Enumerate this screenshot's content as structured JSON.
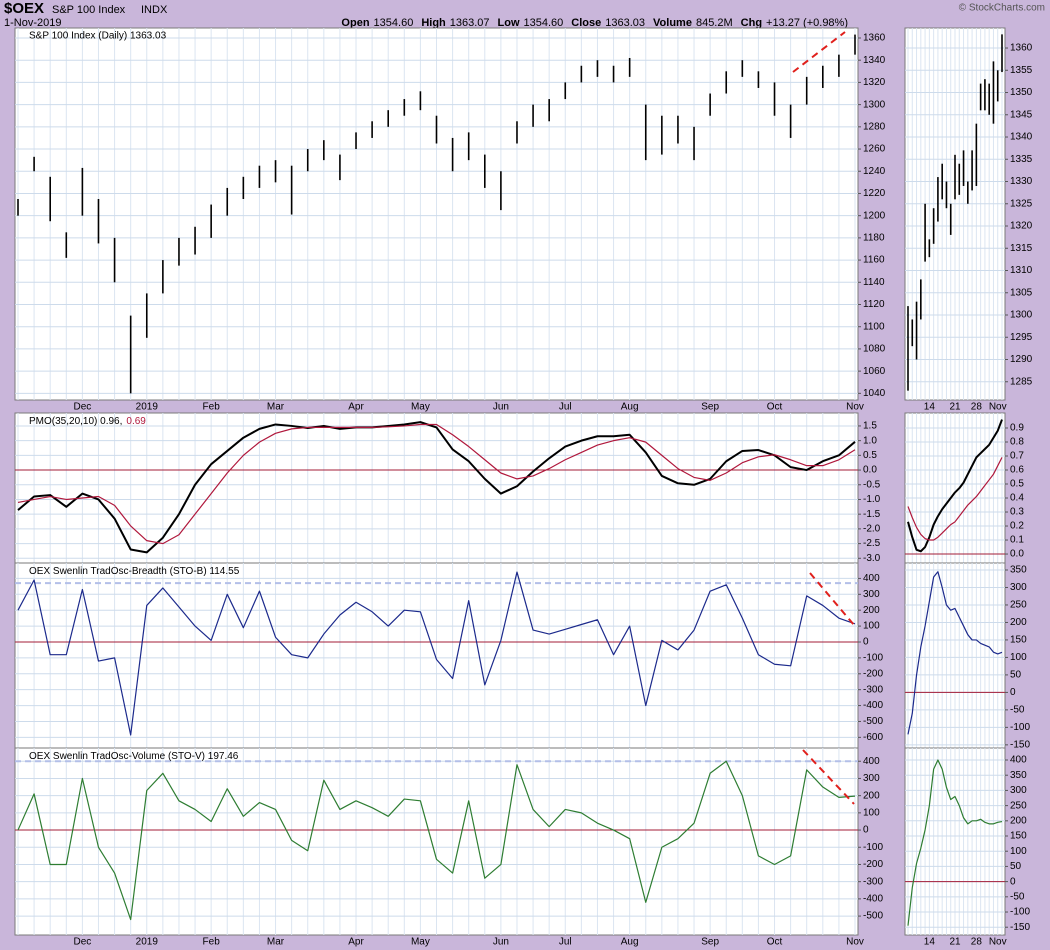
{
  "header": {
    "symbol": "$OEX",
    "name": "S&P 100 Index",
    "exchange": "INDX",
    "date": "1-Nov-2019",
    "credit": "© StockCharts.com",
    "quote": [
      {
        "label": "Open",
        "value": "1354.60"
      },
      {
        "label": "High",
        "value": "1363.07"
      },
      {
        "label": "Low",
        "value": "1354.60"
      },
      {
        "label": "Close",
        "value": "1363.03"
      },
      {
        "label": "Volume",
        "value": "845.2M"
      },
      {
        "label": "Chg",
        "value": "+13.27 (+0.98%)"
      }
    ]
  },
  "chart_data": [
    {
      "type": "ohlc",
      "title": "S&P 100 Index (Daily) 1363.03",
      "color": "#000000",
      "grid": true,
      "categories": [
        null,
        null,
        null,
        null,
        "Dec",
        null,
        null,
        null,
        "2019",
        null,
        null,
        null,
        "Feb",
        null,
        null,
        null,
        "Mar",
        null,
        null,
        null,
        null,
        "Apr",
        null,
        null,
        null,
        "May",
        null,
        null,
        null,
        null,
        "Jun",
        null,
        null,
        null,
        "Jul",
        null,
        null,
        null,
        "Aug",
        null,
        null,
        null,
        null,
        "Sep",
        null,
        null,
        null,
        "Oct",
        null,
        null,
        null,
        null,
        "Nov"
      ],
      "high": [
        1215,
        1253,
        1235,
        1185,
        1243,
        1215,
        1180,
        1110,
        1130,
        1160,
        1180,
        1190,
        1210,
        1225,
        1235,
        1245,
        1250,
        1245,
        1260,
        1268,
        1255,
        1275,
        1285,
        1295,
        1305,
        1312,
        1290,
        1270,
        1275,
        1255,
        1240,
        1285,
        1300,
        1305,
        1320,
        1335,
        1340,
        1335,
        1342,
        1300,
        1290,
        1290,
        1280,
        1310,
        1330,
        1340,
        1330,
        1320,
        1300,
        1325,
        1335,
        1345,
        1363.07
      ],
      "low": [
        1200,
        1240,
        1195,
        1162,
        1200,
        1175,
        1140,
        1040,
        1090,
        1130,
        1155,
        1165,
        1180,
        1200,
        1215,
        1225,
        1230,
        1201,
        1240,
        1250,
        1232,
        1260,
        1270,
        1280,
        1290,
        1295,
        1265,
        1240,
        1250,
        1225,
        1205,
        1265,
        1280,
        1285,
        1305,
        1320,
        1325,
        1320,
        1325,
        1250,
        1255,
        1265,
        1250,
        1290,
        1310,
        1325,
        1315,
        1290,
        1270,
        1300,
        1315,
        1325,
        1345
      ],
      "ylim": [
        1034,
        1369
      ],
      "yticks": [
        1040,
        1060,
        1080,
        1100,
        1120,
        1140,
        1160,
        1180,
        1200,
        1220,
        1240,
        1260,
        1280,
        1300,
        1320,
        1340,
        1360
      ]
    },
    {
      "type": "line",
      "grid": true,
      "series": [
        {
          "name": "PMO(35,20,10) 0.96,",
          "color": "#000000",
          "width": 2,
          "values": [
            -1.36,
            -0.9,
            -0.85,
            -1.25,
            -0.8,
            -1.0,
            -1.65,
            -2.7,
            -2.8,
            -2.3,
            -1.5,
            -0.5,
            0.2,
            0.65,
            1.1,
            1.4,
            1.55,
            1.5,
            1.43,
            1.5,
            1.4,
            1.45,
            1.45,
            1.5,
            1.55,
            1.63,
            1.45,
            0.7,
            0.3,
            -0.3,
            -0.8,
            -0.55,
            -0.05,
            0.4,
            0.8,
            1.0,
            1.15,
            1.15,
            1.2,
            0.6,
            -0.2,
            -0.45,
            -0.5,
            -0.3,
            0.3,
            0.65,
            0.68,
            0.5,
            0.1,
            0.0,
            0.3,
            0.5,
            0.96
          ]
        },
        {
          "name": "0.69",
          "color": "#b0183c",
          "width": 1.2,
          "values": [
            -1.1,
            -1.0,
            -0.9,
            -1.0,
            -0.95,
            -0.9,
            -1.2,
            -1.9,
            -2.4,
            -2.5,
            -2.2,
            -1.5,
            -0.8,
            -0.1,
            0.5,
            0.95,
            1.25,
            1.4,
            1.45,
            1.45,
            1.45,
            1.45,
            1.45,
            1.47,
            1.5,
            1.55,
            1.55,
            1.2,
            0.8,
            0.35,
            -0.1,
            -0.3,
            -0.2,
            0.05,
            0.35,
            0.6,
            0.85,
            1.0,
            1.1,
            0.95,
            0.5,
            0.05,
            -0.25,
            -0.35,
            -0.1,
            0.25,
            0.45,
            0.52,
            0.35,
            0.15,
            0.15,
            0.35,
            0.69
          ]
        }
      ],
      "hlines": [
        {
          "value": 0,
          "color": "#a31c37"
        }
      ],
      "ylim": [
        -3.16,
        1.94
      ],
      "yticks": [
        1.5,
        {
          "value": 1,
          "label": "1.0"
        },
        0.5,
        {
          "value": 0,
          "label": "0.0"
        },
        -0.5,
        {
          "value": -1,
          "label": "-1.0"
        },
        -1.5,
        {
          "value": -2,
          "label": "-2.0"
        },
        -2.5,
        {
          "value": -3,
          "label": "-3.0"
        }
      ]
    },
    {
      "type": "line",
      "grid": true,
      "series": [
        {
          "name": "OEX Swenlin TradOsc-Breadth (STO-B) 114.55",
          "color": "#1c2a8c",
          "width": 1.2,
          "values": [
            200,
            390,
            -80,
            -80,
            330,
            -120,
            -100,
            -585,
            230,
            340,
            220,
            100,
            10,
            300,
            90,
            320,
            30,
            -80,
            -100,
            50,
            170,
            250,
            190,
            100,
            200,
            190,
            -110,
            -230,
            260,
            -270,
            10,
            440,
            75,
            50,
            80,
            110,
            140,
            -80,
            100,
            -400,
            10,
            -50,
            75,
            320,
            360,
            150,
            -80,
            -140,
            -150,
            290,
            230,
            150,
            114.55
          ]
        }
      ],
      "hlines": [
        {
          "value": 0,
          "color": "#a31c37"
        },
        {
          "value": 370,
          "color": "#b3bfe8",
          "dash": true
        }
      ],
      "ylim": [
        -667,
        497
      ],
      "yticks": [
        400,
        300,
        200,
        100,
        0,
        -100,
        -200,
        -300,
        -400,
        -500,
        -600
      ]
    },
    {
      "type": "line",
      "grid": true,
      "categories": [
        null,
        null,
        null,
        null,
        "Dec",
        null,
        null,
        null,
        "2019",
        null,
        null,
        null,
        "Feb",
        null,
        null,
        null,
        "Mar",
        null,
        null,
        null,
        null,
        "Apr",
        null,
        null,
        null,
        "May",
        null,
        null,
        null,
        null,
        "Jun",
        null,
        null,
        null,
        "Jul",
        null,
        null,
        null,
        "Aug",
        null,
        null,
        null,
        null,
        "Sep",
        null,
        null,
        null,
        "Oct",
        null,
        null,
        null,
        null,
        "Nov"
      ],
      "series": [
        {
          "name": "OEX Swenlin TradOsc-Volume (STO-V) 197.46",
          "color": "#2e7d32",
          "width": 1.2,
          "values": [
            0,
            210,
            -200,
            -200,
            300,
            -100,
            -250,
            -520,
            230,
            330,
            170,
            120,
            50,
            240,
            80,
            160,
            120,
            -60,
            -120,
            290,
            120,
            170,
            130,
            80,
            180,
            170,
            -170,
            -250,
            170,
            -280,
            -200,
            380,
            120,
            20,
            120,
            100,
            40,
            0,
            -50,
            -420,
            -100,
            -50,
            40,
            330,
            400,
            200,
            -150,
            -200,
            -150,
            350,
            250,
            190,
            197.46
          ]
        }
      ],
      "hlines": [
        {
          "value": 0,
          "color": "#a31c37"
        },
        {
          "value": 400,
          "color": "#b3bfe8",
          "dash": true
        }
      ],
      "ylim": [
        -610,
        477
      ],
      "yticks": [
        400,
        300,
        200,
        100,
        0,
        -100,
        -200,
        -300,
        -400,
        -500
      ]
    },
    {
      "type": "ohlc",
      "color": "#000000",
      "grid": true,
      "categories": [
        null,
        null,
        null,
        null,
        null,
        "14",
        null,
        null,
        null,
        null,
        null,
        "21",
        null,
        null,
        null,
        null,
        "28",
        null,
        null,
        null,
        null,
        "Nov",
        null
      ],
      "high": [
        1302,
        1299,
        1303,
        1308,
        1325,
        1317,
        1324,
        1331,
        1334,
        1330,
        1325,
        1336,
        1334,
        1337,
        1330,
        1337,
        1343,
        1352,
        1353,
        1352,
        1357,
        1355,
        1363.07
      ],
      "low": [
        1283,
        1293,
        1290,
        1299,
        1312,
        1313,
        1316,
        1321,
        1326,
        1324,
        1318,
        1326,
        1327,
        1329,
        1325,
        1328,
        1329,
        1346,
        1346,
        1345,
        1343,
        1348,
        1354.6
      ],
      "ylim": [
        1280.9,
        1364.5
      ],
      "yticks": [
        1360,
        1355,
        1350,
        1345,
        1340,
        1335,
        1330,
        1325,
        1320,
        1315,
        1310,
        1305,
        1300,
        1295,
        1290,
        1285
      ]
    },
    {
      "type": "line",
      "grid": true,
      "series": [
        {
          "color": "#000000",
          "width": 2,
          "values": [
            0.23,
            0.12,
            0.03,
            0.02,
            0.05,
            0.12,
            0.21,
            0.27,
            0.32,
            0.36,
            0.4,
            0.44,
            0.47,
            0.51,
            0.57,
            0.63,
            0.69,
            0.72,
            0.75,
            0.78,
            0.83,
            0.88,
            0.96
          ]
        },
        {
          "color": "#b0183c",
          "width": 1.2,
          "values": [
            0.34,
            0.26,
            0.19,
            0.14,
            0.11,
            0.1,
            0.1,
            0.12,
            0.15,
            0.18,
            0.21,
            0.23,
            0.27,
            0.31,
            0.35,
            0.38,
            0.41,
            0.45,
            0.49,
            0.53,
            0.57,
            0.63,
            0.69
          ]
        }
      ],
      "hlines": [
        {
          "value": 0,
          "color": "#a31c37"
        }
      ],
      "ylim": [
        -0.064,
        1.007
      ],
      "yticks": [
        0.9,
        0.8,
        0.7,
        0.6,
        0.5,
        0.4,
        0.3,
        0.2,
        0.1,
        {
          "value": 0,
          "label": "0.0"
        }
      ]
    },
    {
      "type": "line",
      "grid": true,
      "series": [
        {
          "color": "#1c2a8c",
          "width": 1.2,
          "values": [
            -120,
            -60,
            50,
            130,
            190,
            260,
            330,
            345,
            300,
            250,
            235,
            240,
            215,
            190,
            165,
            150,
            150,
            140,
            135,
            130,
            115,
            110,
            114.55
          ]
        }
      ],
      "hlines": [
        {
          "value": 0,
          "color": "#a31c37"
        }
      ],
      "ylim": [
        -159,
        370
      ],
      "yticks": [
        350,
        300,
        250,
        200,
        150,
        100,
        50,
        0,
        -50,
        -100,
        -150
      ]
    },
    {
      "type": "line",
      "grid": true,
      "categories": [
        null,
        null,
        null,
        null,
        null,
        "14",
        null,
        null,
        null,
        null,
        null,
        "21",
        null,
        null,
        null,
        null,
        "28",
        null,
        null,
        null,
        null,
        "Nov",
        null
      ],
      "series": [
        {
          "color": "#2e7d32",
          "width": 1.2,
          "values": [
            -145,
            -20,
            60,
            110,
            170,
            250,
            370,
            400,
            370,
            310,
            270,
            280,
            250,
            210,
            190,
            200,
            200,
            205,
            195,
            190,
            190,
            195,
            197.46
          ]
        }
      ],
      "hlines": [
        {
          "value": 0,
          "color": "#a31c37"
        }
      ],
      "ylim": [
        -175.6,
        439.5
      ],
      "yticks": [
        400,
        350,
        300,
        250,
        200,
        150,
        100,
        50,
        0,
        -50,
        -100,
        -150
      ]
    }
  ]
}
